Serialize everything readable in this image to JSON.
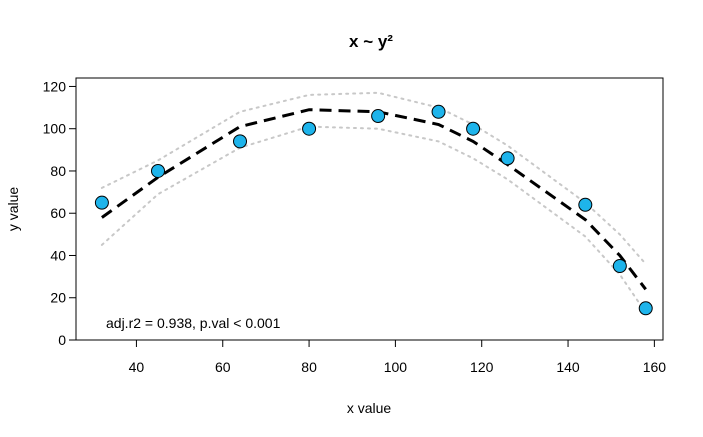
{
  "chart_data": {
    "type": "scatter",
    "title": "x ~ y²",
    "xlabel": "x value",
    "ylabel": "y value",
    "xlim": [
      26,
      162
    ],
    "ylim": [
      0,
      124
    ],
    "x_ticks": [
      40,
      60,
      80,
      100,
      120,
      140,
      160
    ],
    "y_ticks": [
      0,
      20,
      40,
      60,
      80,
      100,
      120
    ],
    "annotation": "adj.r2 = 0.938,  p.val < 0.001",
    "points": [
      {
        "x": 32,
        "y": 65
      },
      {
        "x": 45,
        "y": 80
      },
      {
        "x": 64,
        "y": 94
      },
      {
        "x": 80,
        "y": 100
      },
      {
        "x": 96,
        "y": 106
      },
      {
        "x": 110,
        "y": 108
      },
      {
        "x": 118,
        "y": 100
      },
      {
        "x": 126,
        "y": 86
      },
      {
        "x": 144,
        "y": 64
      },
      {
        "x": 152,
        "y": 35
      },
      {
        "x": 158,
        "y": 15
      }
    ],
    "fit_line": [
      {
        "x": 32,
        "y": 58
      },
      {
        "x": 45,
        "y": 77
      },
      {
        "x": 64,
        "y": 101
      },
      {
        "x": 80,
        "y": 109
      },
      {
        "x": 96,
        "y": 108
      },
      {
        "x": 110,
        "y": 102
      },
      {
        "x": 118,
        "y": 94
      },
      {
        "x": 126,
        "y": 83
      },
      {
        "x": 144,
        "y": 57
      },
      {
        "x": 152,
        "y": 40
      },
      {
        "x": 158,
        "y": 24
      }
    ],
    "ci_upper": [
      {
        "x": 32,
        "y": 72
      },
      {
        "x": 45,
        "y": 85
      },
      {
        "x": 64,
        "y": 108
      },
      {
        "x": 80,
        "y": 116
      },
      {
        "x": 96,
        "y": 117
      },
      {
        "x": 110,
        "y": 110
      },
      {
        "x": 118,
        "y": 102
      },
      {
        "x": 126,
        "y": 92
      },
      {
        "x": 144,
        "y": 65
      },
      {
        "x": 152,
        "y": 50
      },
      {
        "x": 158,
        "y": 36
      }
    ],
    "ci_lower": [
      {
        "x": 32,
        "y": 45
      },
      {
        "x": 45,
        "y": 69
      },
      {
        "x": 64,
        "y": 91
      },
      {
        "x": 80,
        "y": 101
      },
      {
        "x": 96,
        "y": 100
      },
      {
        "x": 110,
        "y": 94
      },
      {
        "x": 118,
        "y": 86
      },
      {
        "x": 126,
        "y": 76
      },
      {
        "x": 144,
        "y": 49
      },
      {
        "x": 152,
        "y": 31
      },
      {
        "x": 158,
        "y": 13
      }
    ],
    "colors": {
      "point_fill": "#1eb4eb",
      "point_stroke": "#000000",
      "fit_line": "#000000",
      "ci_line": "#c8c8c8"
    },
    "grid": false,
    "legend": "none"
  }
}
